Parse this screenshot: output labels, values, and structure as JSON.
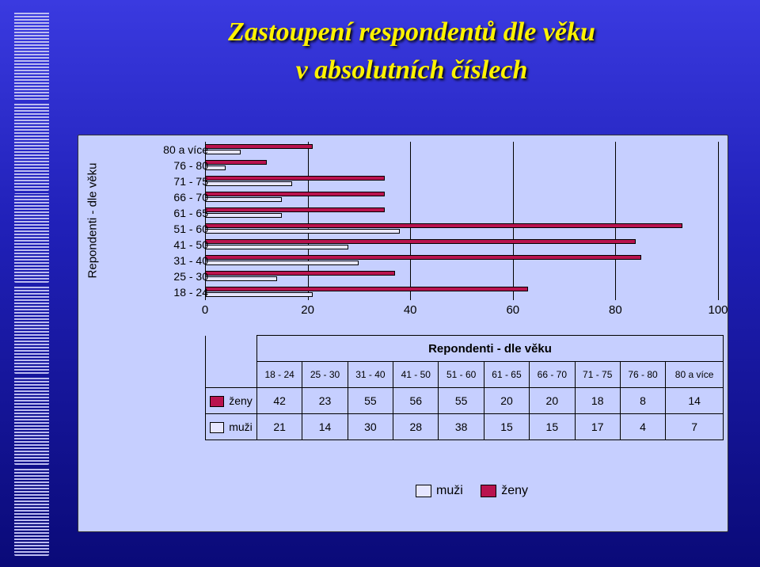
{
  "title_line1": "Zastoupení respondentů dle věku",
  "title_line2": "v absolutních číslech",
  "y_axis_label": "Repondenti - dle věku",
  "table_caption": "Repondenti - dle věku",
  "chart": {
    "type": "bar_horizontal_stacked_paired",
    "background_color": "#c6cfff",
    "bar_border": "#000000",
    "grid_color": "#000000",
    "xlim": [
      0,
      100
    ],
    "xtick_step": 20,
    "xticks": [
      "0",
      "20",
      "40",
      "60",
      "80",
      "100"
    ],
    "categories": [
      "18 - 24",
      "25 - 30",
      "31 - 40",
      "41 - 50",
      "51 - 60",
      "61 - 65",
      "66 - 70",
      "71 - 75",
      "76 - 80",
      "80 a více"
    ],
    "series": [
      {
        "key": "zeny",
        "label": "ženy",
        "color": "#b9134e",
        "values": [
          42,
          23,
          55,
          56,
          55,
          20,
          20,
          18,
          8,
          14
        ]
      },
      {
        "key": "muzi",
        "label": "muži",
        "color": "#e6e6ff",
        "values": [
          21,
          14,
          30,
          28,
          38,
          15,
          15,
          17,
          4,
          7
        ]
      }
    ]
  },
  "font": {
    "title_pt": 34,
    "axis_pt": 15,
    "table_pt": 14,
    "legend_pt": 16
  },
  "slide_bg_top": "#3a3ae0",
  "slide_bg_bottom": "#0a0a78",
  "title_color": "#fff200"
}
